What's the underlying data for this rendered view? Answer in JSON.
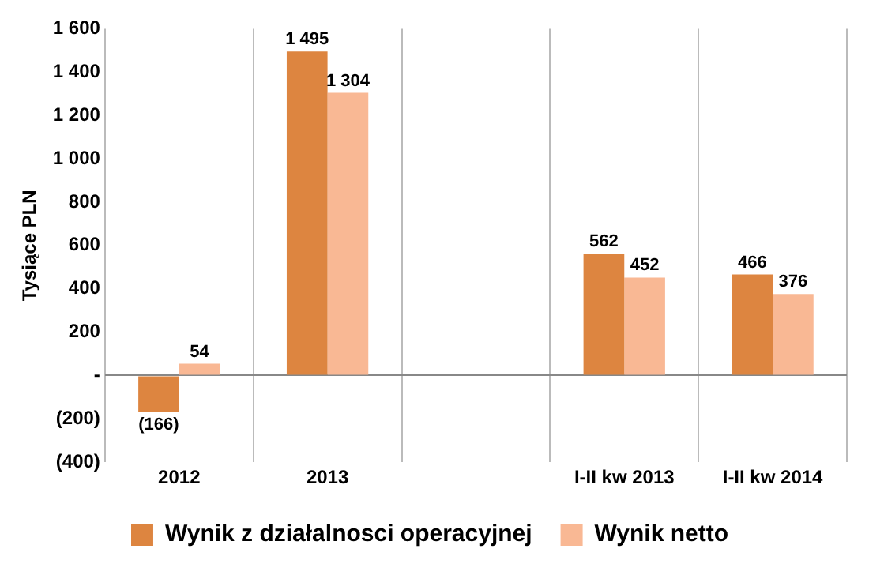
{
  "chart_data": {
    "type": "bar",
    "ylabel": "Tysiące PLN",
    "categories": [
      "2012",
      "2013",
      null,
      "I-II kw 2013",
      "I-II kw 2014"
    ],
    "series": [
      {
        "name": "Wynik z działalnosci operacyjnej",
        "color": "#dd8540",
        "values": [
          -166,
          1495,
          null,
          562,
          466
        ],
        "value_labels": [
          "(166)",
          "1 495",
          null,
          "562",
          "466"
        ]
      },
      {
        "name": "Wynik netto",
        "color": "#f9b894",
        "values": [
          54,
          1304,
          null,
          452,
          376
        ],
        "value_labels": [
          "54",
          "1 304",
          null,
          "452",
          "376"
        ]
      }
    ],
    "ylim": [
      -400,
      1600
    ],
    "yticks": [
      {
        "value": -400,
        "label": "(400)"
      },
      {
        "value": -200,
        "label": "(200)"
      },
      {
        "value": 0,
        "label": "-"
      },
      200,
      400,
      600,
      800,
      {
        "value": 1000,
        "label": "1 000"
      },
      {
        "value": 1200,
        "label": "1 200"
      },
      {
        "value": 1400,
        "label": "1 400"
      },
      {
        "value": 1600,
        "label": "1 600"
      }
    ],
    "grid": "x",
    "legend": "bottom"
  }
}
